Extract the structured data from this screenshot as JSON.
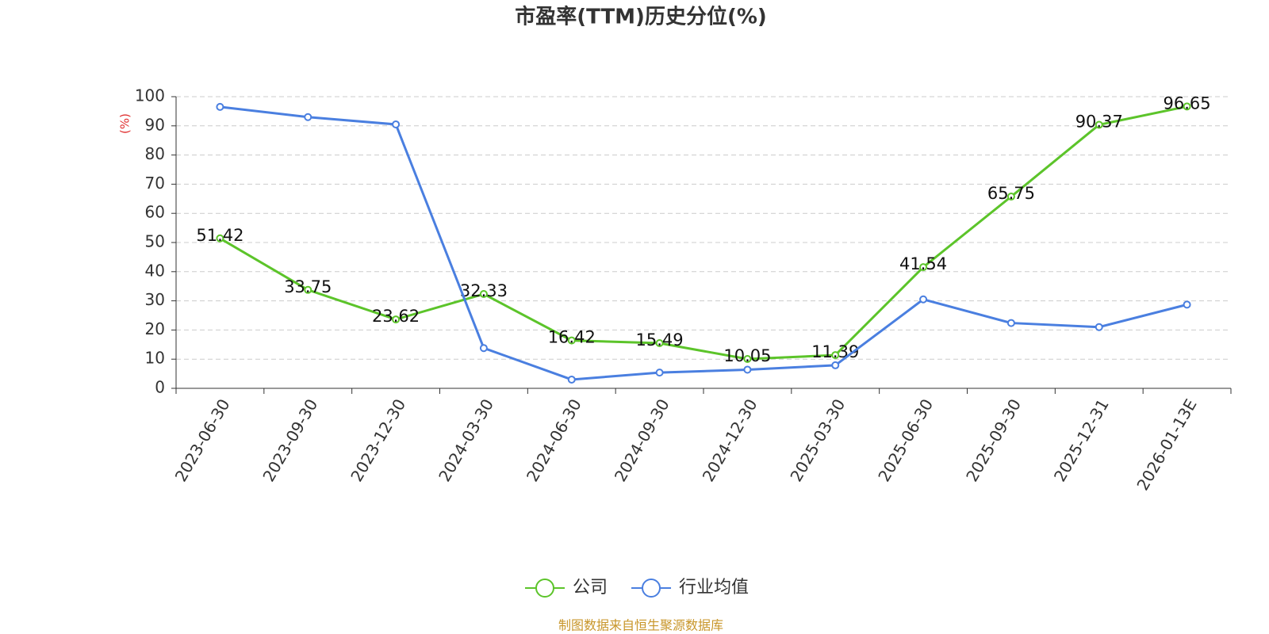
{
  "chart_data": {
    "type": "line",
    "title": "市盈率(TTM)历史分位(%)",
    "y_label": "(%)",
    "source": "制图数据来自恒生聚源数据库",
    "categories": [
      "2023-06-30",
      "2023-09-30",
      "2023-12-30",
      "2024-03-30",
      "2024-06-30",
      "2024-09-30",
      "2024-12-30",
      "2025-03-30",
      "2025-06-30",
      "2025-09-30",
      "2025-12-31",
      "2026-01-13E"
    ],
    "series": [
      {
        "name": "公司",
        "color": "#5cc42a",
        "values": [
          51.42,
          33.75,
          23.62,
          32.33,
          16.42,
          15.49,
          10.05,
          11.39,
          41.54,
          65.75,
          90.37,
          96.65
        ],
        "show_labels": true
      },
      {
        "name": "行业均值",
        "color": "#4a7fe0",
        "values": [
          96.5,
          93,
          90.5,
          13.8,
          3,
          5.4,
          6.4,
          7.9,
          30.5,
          22.4,
          21,
          28.7
        ],
        "show_labels": false
      }
    ],
    "ylim": [
      0,
      100
    ],
    "yticks": [
      0,
      10,
      20,
      30,
      40,
      50,
      60,
      70,
      80,
      90,
      100
    ],
    "grid": true
  }
}
